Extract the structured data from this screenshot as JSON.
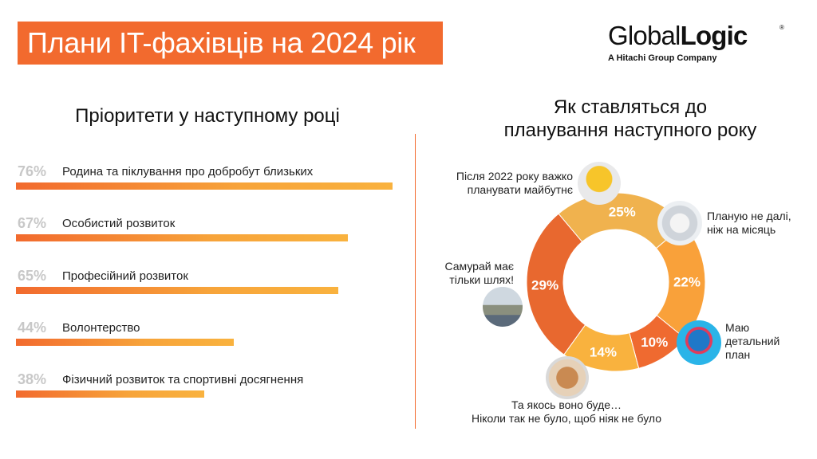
{
  "header": {
    "title": "Плани IT-фахівців на 2024 рік",
    "logo_text_a": "Global",
    "logo_text_b": "Logic",
    "logo_reg": "®",
    "logo_subtitle": "A Hitachi Group Company"
  },
  "colors": {
    "accent": "#f26a2e",
    "bar_start": "#f26a2e",
    "bar_end": "#f9b23e",
    "pct_gray": "#c8c8c8"
  },
  "left": {
    "heading": "Пріоритети у наступному році"
  },
  "right": {
    "heading_line1": "Як ставляться до",
    "heading_line2": "планування наступного року"
  },
  "chart_data": [
    {
      "type": "bar",
      "orientation": "horizontal",
      "title": "Пріоритети у наступному році",
      "categories": [
        "Родина та піклування про добробут близьких",
        "Особистий розвиток",
        "Професійний розвиток",
        "Волонтерство",
        "Фізичний розвиток та спортивні досягнення"
      ],
      "values": [
        76,
        67,
        65,
        44,
        38
      ],
      "value_labels": [
        "76%",
        "67%",
        "65%",
        "44%",
        "38%"
      ],
      "unit": "%",
      "xlim": [
        0,
        76
      ]
    },
    {
      "type": "pie",
      "style": "donut",
      "title": "Як ставляться до планування наступного року",
      "categories": [
        "Планую не далі, ніж на місяць",
        "Маю детальний план",
        "Та якось воно буде… Ніколи так не було, щоб ніяк не було",
        "Самурай має тільки шлях!",
        "Після 2022 року важко планувати майбутнє"
      ],
      "values": [
        25,
        22,
        10,
        14,
        29
      ],
      "value_labels": [
        "25%",
        "22%",
        "10%",
        "14%",
        "29%"
      ],
      "colors": [
        "#f0b24e",
        "#f9a13a",
        "#ef6a30",
        "#f9b23e",
        "#e8682f"
      ],
      "annotations": {
        "after2022": [
          "Після 2022 року важко",
          "планувати майбутнє"
        ],
        "month": [
          "Планую не далі,",
          "ніж на місяць"
        ],
        "samurai": [
          "Самурай має",
          "тільки шлях!"
        ],
        "plan": [
          "Маю",
          "детальний",
          "план"
        ],
        "somehow": [
          "Та якось воно буде…",
          "Ніколи так не було, щоб ніяк не було"
        ]
      }
    }
  ]
}
